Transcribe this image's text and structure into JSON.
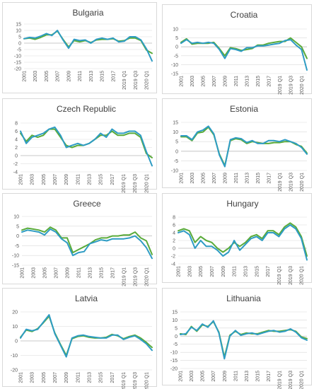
{
  "colors": {
    "series_a": "#2e9cc4",
    "series_b": "#5aab3a",
    "grid": "#d9d9d9"
  },
  "chart_data": [
    {
      "type": "line",
      "title": "Bulgaria",
      "x": [
        "2001",
        "2002",
        "2003",
        "2004",
        "2005",
        "2006",
        "2007",
        "2008",
        "2009",
        "2010",
        "2011",
        "2012",
        "2013",
        "2014",
        "2015",
        "2016",
        "2017",
        "2018",
        "2019 Q1",
        "2019 Q2",
        "2019 Q3",
        "2019 Q4",
        "2020 Q1",
        "2020 Q2"
      ],
      "x_tick_labels": [
        "2001",
        "2003",
        "2005",
        "2007",
        "2009",
        "2011",
        "2013",
        "2015",
        "2017",
        "2019 Q1",
        "2019 Q3",
        "2020 Q1"
      ],
      "y_ticks": [
        15,
        10,
        5,
        0,
        -5,
        -10,
        -15,
        -20
      ],
      "ylim": [
        -20,
        15
      ],
      "series": [
        {
          "values": [
            3.5,
            4.5,
            4.0,
            5.5,
            7.5,
            6.0,
            10.0,
            2.5,
            -4.0,
            3.0,
            2.0,
            2.5,
            0.0,
            3.0,
            4.0,
            3.0,
            4.0,
            1.0,
            1.5,
            5.0,
            5.0,
            2.5,
            -4.5,
            -14.0
          ]
        },
        {
          "values": [
            3.5,
            4.0,
            3.0,
            4.5,
            6.5,
            6.5,
            9.5,
            3.0,
            -3.0,
            2.0,
            1.0,
            2.0,
            0.5,
            2.5,
            3.0,
            3.0,
            3.5,
            1.5,
            2.0,
            4.0,
            4.0,
            2.0,
            -5.5,
            -8.0
          ]
        }
      ]
    },
    {
      "type": "line",
      "title": "Croatia",
      "x": [
        "2001",
        "2002",
        "2003",
        "2004",
        "2005",
        "2006",
        "2007",
        "2008",
        "2009",
        "2010",
        "2011",
        "2012",
        "2013",
        "2014",
        "2015",
        "2016",
        "2017",
        "2018",
        "2019 Q1",
        "2019 Q2",
        "2019 Q3",
        "2019 Q4",
        "2020 Q1",
        "2020 Q2"
      ],
      "x_tick_labels": [
        "2001",
        "2003",
        "2005",
        "2007",
        "2009",
        "2011",
        "2013",
        "2015",
        "2017",
        "2019 Q1",
        "2019 Q3",
        "2020 Q1"
      ],
      "y_ticks": [
        10,
        5,
        0,
        -5,
        -10,
        -15
      ],
      "ylim": [
        -15,
        10
      ],
      "series": [
        {
          "values": [
            2.0,
            4.0,
            2.0,
            2.5,
            2.0,
            2.5,
            2.0,
            -1.5,
            -6.5,
            -1.0,
            -1.5,
            -2.5,
            -0.5,
            -0.5,
            0.5,
            0.5,
            1.0,
            1.5,
            2.0,
            3.5,
            4.0,
            1.0,
            -1.5,
            -13.0
          ]
        },
        {
          "values": [
            2.5,
            4.5,
            1.5,
            2.0,
            2.0,
            2.0,
            2.5,
            -1.0,
            -5.0,
            -0.5,
            -1.0,
            -2.0,
            -1.5,
            -1.0,
            1.0,
            1.0,
            2.0,
            2.5,
            3.0,
            3.0,
            5.0,
            2.5,
            0.0,
            -6.5
          ]
        }
      ]
    },
    {
      "type": "line",
      "title": "Czech Republic",
      "x": [
        "2001",
        "2002",
        "2003",
        "2004",
        "2005",
        "2006",
        "2007",
        "2008",
        "2009",
        "2010",
        "2011",
        "2012",
        "2013",
        "2014",
        "2015",
        "2016",
        "2017",
        "2018",
        "2019 Q1",
        "2019 Q2",
        "2019 Q3",
        "2019 Q4",
        "2020 Q1",
        "2020 Q2"
      ],
      "x_tick_labels": [
        "2001",
        "2003",
        "2005",
        "2007",
        "2009",
        "2011",
        "2013",
        "2015",
        "2017",
        "2019 Q1",
        "2019 Q3",
        "2020 Q1"
      ],
      "y_ticks": [
        8,
        6,
        4,
        2,
        0,
        -2,
        -4
      ],
      "ylim": [
        -4,
        8
      ],
      "series": [
        {
          "values": [
            6.0,
            3.0,
            4.5,
            5.0,
            5.5,
            6.5,
            7.0,
            5.0,
            2.0,
            2.5,
            3.0,
            2.5,
            3.0,
            4.0,
            5.5,
            4.5,
            6.5,
            5.5,
            5.5,
            6.0,
            6.0,
            5.0,
            1.0,
            -2.5
          ]
        },
        {
          "values": [
            5.5,
            3.5,
            5.0,
            4.5,
            5.0,
            6.5,
            6.5,
            4.5,
            2.5,
            2.0,
            2.5,
            2.5,
            3.0,
            4.0,
            5.0,
            5.0,
            6.0,
            5.0,
            5.0,
            5.5,
            5.5,
            4.5,
            0.5,
            -0.5
          ]
        }
      ]
    },
    {
      "type": "line",
      "title": "Estonia",
      "x": [
        "2001",
        "2002",
        "2003",
        "2004",
        "2005",
        "2006",
        "2007",
        "2008",
        "2009",
        "2010",
        "2011",
        "2012",
        "2013",
        "2014",
        "2015",
        "2016",
        "2017",
        "2018",
        "2019 Q1",
        "2019 Q2",
        "2019 Q3",
        "2019 Q4",
        "2020 Q1",
        "2020 Q2"
      ],
      "x_tick_labels": [
        "2001",
        "2003",
        "2005",
        "2007",
        "2009",
        "2011",
        "2013",
        "2015",
        "2017",
        "2019 Q1",
        "2019 Q3",
        "2020 Q1"
      ],
      "y_ticks": [
        15,
        10,
        5,
        0,
        -5,
        -10
      ],
      "ylim": [
        -10,
        15
      ],
      "series": [
        {
          "values": [
            8.0,
            8.0,
            6.0,
            10.0,
            11.0,
            13.0,
            9.0,
            -2.0,
            -8.0,
            6.0,
            7.0,
            6.5,
            4.5,
            5.5,
            4.0,
            4.0,
            5.5,
            5.5,
            5.0,
            6.0,
            5.0,
            4.0,
            2.0,
            -1.5
          ]
        },
        {
          "values": [
            7.5,
            7.5,
            5.5,
            9.5,
            10.0,
            12.5,
            8.5,
            -1.5,
            -7.5,
            5.5,
            6.5,
            6.0,
            4.0,
            5.0,
            4.5,
            4.0,
            4.0,
            4.5,
            4.5,
            5.0,
            5.0,
            3.5,
            2.5,
            -1.0
          ]
        }
      ]
    },
    {
      "type": "line",
      "title": "Greece",
      "x": [
        "2001",
        "2002",
        "2003",
        "2004",
        "2005",
        "2006",
        "2007",
        "2008",
        "2009",
        "2010",
        "2011",
        "2012",
        "2013",
        "2014",
        "2015",
        "2016",
        "2017",
        "2018",
        "2019 Q1",
        "2019 Q2",
        "2019 Q3",
        "2019 Q4",
        "2020 Q1",
        "2020 Q2"
      ],
      "x_tick_labels": [
        "2001",
        "2003",
        "2005",
        "2007",
        "2009",
        "2011",
        "2013",
        "2015",
        "2017",
        "2019 Q1",
        "2019 Q3",
        "2020 Q1"
      ],
      "y_ticks": [
        10,
        5,
        0,
        -5,
        -10,
        -15
      ],
      "ylim": [
        -15,
        10
      ],
      "series": [
        {
          "values": [
            2.0,
            3.0,
            2.5,
            2.0,
            0.5,
            3.5,
            2.0,
            -1.5,
            -3.5,
            -10.0,
            -8.5,
            -8.0,
            -4.0,
            -3.0,
            -2.0,
            -2.5,
            -1.5,
            -1.5,
            -1.5,
            -1.0,
            0.0,
            -2.5,
            -6.0,
            -11.5
          ]
        },
        {
          "values": [
            3.0,
            4.0,
            3.5,
            3.0,
            2.0,
            4.5,
            3.0,
            -1.0,
            -1.0,
            -8.5,
            -7.0,
            -5.5,
            -4.0,
            -2.0,
            -1.0,
            -1.0,
            0.0,
            0.0,
            0.5,
            0.5,
            2.0,
            -1.0,
            -2.5,
            -9.5
          ]
        }
      ]
    },
    {
      "type": "line",
      "title": "Hungary",
      "x": [
        "2001",
        "2002",
        "2003",
        "2004",
        "2005",
        "2006",
        "2007",
        "2008",
        "2009",
        "2010",
        "2011",
        "2012",
        "2013",
        "2014",
        "2015",
        "2016",
        "2017",
        "2018",
        "2019 Q1",
        "2019 Q2",
        "2019 Q3",
        "2019 Q4",
        "2020 Q1",
        "2020 Q2"
      ],
      "x_tick_labels": [
        "2001",
        "2003",
        "2005",
        "2007",
        "2009",
        "2011",
        "2013",
        "2015",
        "2017",
        "2019 Q1",
        "2019 Q3",
        "2020 Q1"
      ],
      "y_ticks": [
        8,
        6,
        4,
        2,
        0,
        -2,
        -4
      ],
      "ylim": [
        -4,
        8
      ],
      "series": [
        {
          "values": [
            4.0,
            4.5,
            3.5,
            0.0,
            2.0,
            0.5,
            0.5,
            -0.5,
            -2.0,
            -1.0,
            2.0,
            -0.5,
            1.0,
            2.5,
            3.0,
            2.0,
            4.0,
            4.0,
            3.0,
            5.0,
            6.0,
            5.0,
            2.5,
            -3.0
          ]
        },
        {
          "values": [
            4.5,
            5.0,
            4.5,
            1.5,
            3.0,
            2.0,
            1.5,
            0.0,
            -1.0,
            0.0,
            1.5,
            0.5,
            1.5,
            3.0,
            3.5,
            2.5,
            4.5,
            4.5,
            3.5,
            5.5,
            6.5,
            5.5,
            3.0,
            -2.0
          ]
        }
      ]
    },
    {
      "type": "line",
      "title": "Latvia",
      "x": [
        "2001",
        "2002",
        "2003",
        "2004",
        "2005",
        "2006",
        "2007",
        "2008",
        "2009",
        "2010",
        "2011",
        "2012",
        "2013",
        "2014",
        "2015",
        "2016",
        "2017",
        "2018",
        "2019 Q1",
        "2019 Q2",
        "2019 Q3",
        "2019 Q4",
        "2020 Q1",
        "2020 Q2"
      ],
      "x_tick_labels": [
        "2001",
        "2003",
        "2005",
        "2007",
        "2009",
        "2011",
        "2013",
        "2015",
        "2017",
        "2019 Q1",
        "2019 Q3",
        "2020 Q1"
      ],
      "y_ticks": [
        20,
        10,
        0,
        -10,
        -20
      ],
      "ylim": [
        -20,
        20
      ],
      "series": [
        {
          "values": [
            2.0,
            8.0,
            7.0,
            8.0,
            13.0,
            18.0,
            5.0,
            -3.0,
            -11.0,
            2.0,
            3.5,
            4.0,
            3.0,
            2.5,
            2.0,
            2.0,
            4.0,
            4.0,
            1.0,
            2.5,
            3.5,
            1.0,
            -2.0,
            -6.5
          ]
        },
        {
          "values": [
            2.5,
            7.5,
            6.5,
            8.5,
            12.5,
            17.0,
            5.5,
            -2.5,
            -10.0,
            1.5,
            3.0,
            3.5,
            2.5,
            2.0,
            2.0,
            2.5,
            4.5,
            3.5,
            1.5,
            3.0,
            4.0,
            2.0,
            -1.0,
            -4.5
          ]
        }
      ]
    },
    {
      "type": "line",
      "title": "Lithuania",
      "x": [
        "2001",
        "2002",
        "2003",
        "2004",
        "2005",
        "2006",
        "2007",
        "2008",
        "2009",
        "2010",
        "2011",
        "2012",
        "2013",
        "2014",
        "2015",
        "2016",
        "2017",
        "2018",
        "2019 Q1",
        "2019 Q2",
        "2019 Q3",
        "2019 Q4",
        "2020 Q1",
        "2020 Q2"
      ],
      "x_tick_labels": [
        "2001",
        "2003",
        "2005",
        "2007",
        "2009",
        "2011",
        "2013",
        "2015",
        "2017",
        "2019 Q1",
        "2019 Q3",
        "2020 Q1"
      ],
      "y_ticks": [
        15,
        10,
        5,
        0,
        -5,
        -10,
        -15,
        -20
      ],
      "ylim": [
        -20,
        15
      ],
      "series": [
        {
          "values": [
            1.0,
            1.5,
            5.5,
            3.5,
            7.5,
            5.5,
            9.5,
            2.0,
            -14.0,
            0.0,
            3.5,
            0.5,
            1.5,
            2.0,
            1.0,
            2.0,
            3.0,
            3.5,
            2.5,
            3.0,
            4.5,
            2.5,
            -1.0,
            -2.5
          ]
        },
        {
          "values": [
            1.5,
            1.0,
            6.0,
            3.0,
            7.0,
            6.0,
            9.0,
            2.5,
            -13.0,
            0.5,
            3.0,
            1.0,
            2.0,
            1.5,
            1.5,
            2.5,
            3.5,
            3.0,
            3.0,
            3.5,
            4.0,
            3.0,
            -0.5,
            -1.5
          ]
        }
      ]
    }
  ]
}
